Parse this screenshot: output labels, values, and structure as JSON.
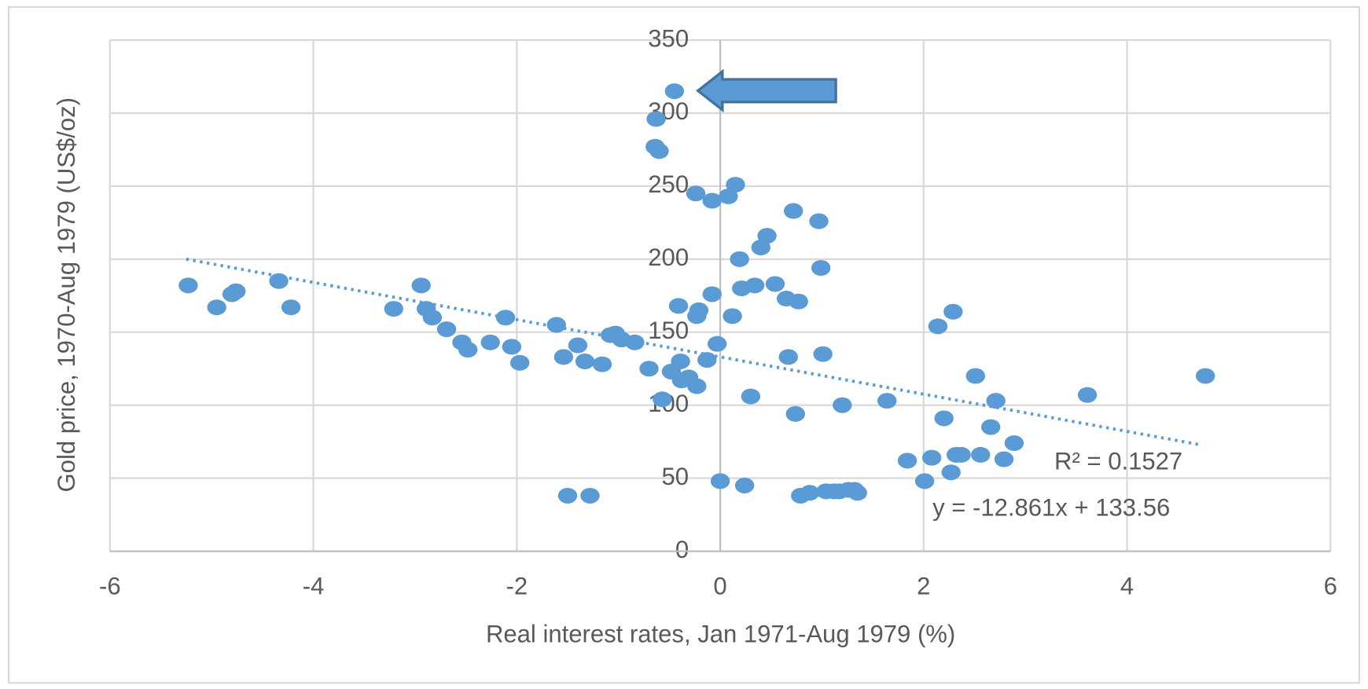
{
  "chart_data": {
    "type": "scatter",
    "xlabel": "Real interest rates, Jan 1971-Aug 1979 (%)",
    "ylabel": "Gold price, 1970-Aug 1979 (US$/oz)",
    "color": "#5b9bd5",
    "xlim": [
      -6,
      6
    ],
    "xticks": [
      -6,
      -4,
      -2,
      0,
      2,
      4,
      6
    ],
    "ylim": [
      0,
      350
    ],
    "yticks": [
      0,
      50,
      100,
      150,
      200,
      250,
      300,
      350
    ],
    "grid": true,
    "series": [
      {
        "color": "#5b9bd5",
        "x": [
          -5.23,
          -4.95,
          -4.8,
          -4.76,
          -4.34,
          -4.22,
          -3.21,
          -2.94,
          -2.89,
          -2.83,
          -2.69,
          -2.54,
          -2.48,
          -2.26,
          -2.11,
          -2.05,
          -1.97,
          -1.61,
          -1.54,
          -1.5,
          -1.4,
          -1.33,
          -1.28,
          -1.16,
          -1.08,
          -1.03,
          -0.97,
          -0.84,
          -0.7,
          -0.63,
          -0.64,
          -0.6,
          -0.57,
          -0.45,
          -0.48,
          -0.41,
          -0.39,
          -0.38,
          -0.31,
          -0.24,
          -0.23,
          -0.21,
          -0.23,
          -0.13,
          -0.08,
          -0.08,
          -0.03,
          0.0,
          0.08,
          0.12,
          0.15,
          0.19,
          0.21,
          0.24,
          0.3,
          0.34,
          0.4,
          0.46,
          0.54,
          0.65,
          0.67,
          0.72,
          0.74,
          0.77,
          0.79,
          0.88,
          0.97,
          0.99,
          1.01,
          1.04,
          1.12,
          1.17,
          1.2,
          1.26,
          1.32,
          1.35,
          1.64,
          1.84,
          2.01,
          2.08,
          2.14,
          2.2,
          2.27,
          2.29,
          2.32,
          2.37,
          2.51,
          2.56,
          2.66,
          2.71,
          2.79,
          2.89,
          3.61,
          4.77
        ],
        "values": [
          182,
          167,
          176,
          178,
          185,
          167,
          166,
          182,
          166,
          160,
          152,
          143,
          138,
          143,
          160,
          140,
          129,
          155,
          133,
          38,
          141,
          130,
          38,
          128,
          148,
          149,
          145,
          143,
          125,
          296,
          277,
          274,
          104,
          315,
          123,
          168,
          130,
          117,
          119,
          245,
          161,
          165,
          113,
          131,
          240,
          176,
          142,
          48,
          243,
          161,
          251,
          200,
          180,
          45,
          106,
          182,
          208,
          216,
          183,
          173,
          133,
          233,
          94,
          171,
          38,
          40,
          226,
          194,
          135,
          41,
          41,
          41,
          100,
          42,
          42,
          40,
          103,
          62,
          48,
          64,
          154,
          91,
          54,
          164,
          66,
          66,
          120,
          66,
          85,
          103,
          63,
          74,
          107,
          120
        ]
      }
    ],
    "trendline": {
      "x": [
        -5.25,
        4.71
      ],
      "values": [
        200,
        73
      ]
    },
    "annotations": [
      "R² = 0.1527",
      "y = -12.861x + 133.56"
    ]
  }
}
